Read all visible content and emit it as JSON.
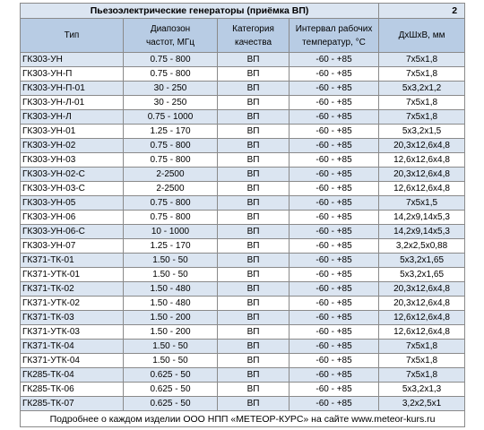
{
  "title": "Пьезоэлектрические генераторы (приёмка ВП)",
  "page_number": "2",
  "headers": {
    "type": "Тип",
    "freq_line1": "Диапозон",
    "freq_line2": "частот, МГц",
    "category_line1": "Категория",
    "category_line2": "качества",
    "temp_line1": "Интервал рабочих",
    "temp_line2": "температур, °С",
    "dims": "ДхШхВ, мм"
  },
  "rows": [
    {
      "type": "ГК303-УН",
      "freq": "0.75 - 800",
      "category": "ВП",
      "temp": "-60 - +85",
      "dims": "7х5х1,8"
    },
    {
      "type": "ГК303-УН-П",
      "freq": "0.75 - 800",
      "category": "ВП",
      "temp": "-60 - +85",
      "dims": "7х5х1,8"
    },
    {
      "type": "ГК303-УН-П-01",
      "freq": "30 - 250",
      "category": "ВП",
      "temp": "-60 - +85",
      "dims": "5х3,2х1,2"
    },
    {
      "type": "ГК303-УН-Л-01",
      "freq": "30 - 250",
      "category": "ВП",
      "temp": "-60 - +85",
      "dims": "7х5х1,8"
    },
    {
      "type": "ГК303-УН-Л",
      "freq": "0.75 - 1000",
      "category": "ВП",
      "temp": "-60 - +85",
      "dims": "7х5х1,8"
    },
    {
      "type": "ГК303-УН-01",
      "freq": "1.25 - 170",
      "category": "ВП",
      "temp": "-60 - +85",
      "dims": "5х3,2х1,5"
    },
    {
      "type": "ГК303-УН-02",
      "freq": "0.75 - 800",
      "category": "ВП",
      "temp": "-60 - +85",
      "dims": "20,3х12,6х4,8"
    },
    {
      "type": "ГК303-УН-03",
      "freq": "0.75 - 800",
      "category": "ВП",
      "temp": "-60 - +85",
      "dims": "12,6х12,6х4,8"
    },
    {
      "type": "ГК303-УН-02-С",
      "freq": "2-2500",
      "category": "ВП",
      "temp": "-60 - +85",
      "dims": "20,3х12,6х4,8"
    },
    {
      "type": "ГК303-УН-03-С",
      "freq": "2-2500",
      "category": "ВП",
      "temp": "-60 - +85",
      "dims": "12,6х12,6х4,8"
    },
    {
      "type": "ГК303-УН-05",
      "freq": "0.75 - 800",
      "category": "ВП",
      "temp": "-60 - +85",
      "dims": "7х5х1,5"
    },
    {
      "type": "ГК303-УН-06",
      "freq": "0.75 - 800",
      "category": "ВП",
      "temp": "-60 - +85",
      "dims": "14,2х9,14х5,3"
    },
    {
      "type": "ГК303-УН-06-С",
      "freq": "10 - 1000",
      "category": "ВП",
      "temp": "-60 - +85",
      "dims": "14,2х9,14х5,3"
    },
    {
      "type": "ГК303-УН-07",
      "freq": "1.25 - 170",
      "category": "ВП",
      "temp": "-60 - +85",
      "dims": "3,2х2,5х0,88"
    },
    {
      "type": "ГК371-ТК-01",
      "freq": "1.50 - 50",
      "category": "ВП",
      "temp": "-60 - +85",
      "dims": "5х3,2х1,65"
    },
    {
      "type": "ГК371-УТК-01",
      "freq": "1.50 - 50",
      "category": "ВП",
      "temp": "-60 - +85",
      "dims": "5х3,2х1,65"
    },
    {
      "type": "ГК371-ТК-02",
      "freq": "1.50 - 480",
      "category": "ВП",
      "temp": "-60 - +85",
      "dims": "20,3х12,6х4,8"
    },
    {
      "type": "ГК371-УТК-02",
      "freq": "1.50 - 480",
      "category": "ВП",
      "temp": "-60 - +85",
      "dims": "20,3х12,6х4,8"
    },
    {
      "type": "ГК371-ТК-03",
      "freq": "1.50 - 200",
      "category": "ВП",
      "temp": "-60 - +85",
      "dims": "12,6х12,6х4,8"
    },
    {
      "type": "ГК371-УТК-03",
      "freq": "1.50 - 200",
      "category": "ВП",
      "temp": "-60 - +85",
      "dims": "12,6х12,6х4,8"
    },
    {
      "type": "ГК371-ТК-04",
      "freq": "1.50 - 50",
      "category": "ВП",
      "temp": "-60 - +85",
      "dims": "7х5х1,8"
    },
    {
      "type": "ГК371-УТК-04",
      "freq": "1.50 - 50",
      "category": "ВП",
      "temp": "-60 - +85",
      "dims": "7х5х1,8"
    },
    {
      "type": "ГК285-ТК-04",
      "freq": "0.625 - 50",
      "category": "ВП",
      "temp": "-60 - +85",
      "dims": "7х5х1,8"
    },
    {
      "type": "ГК285-ТК-06",
      "freq": "0.625 - 50",
      "category": "ВП",
      "temp": "-60 - +85",
      "dims": "5х3,2х1,3"
    },
    {
      "type": "ГК285-ТК-07",
      "freq": "0.625 - 50",
      "category": "ВП",
      "temp": "-60 - +85",
      "dims": "3,2х2,5х1"
    }
  ],
  "footer": "Подробнее о каждом изделии ООО НПП «МЕТЕОР-КУРС» на сайте www.meteor-kurs.ru",
  "colors": {
    "header_fill": "#b8cce4",
    "band_fill": "#dbe5f1"
  }
}
